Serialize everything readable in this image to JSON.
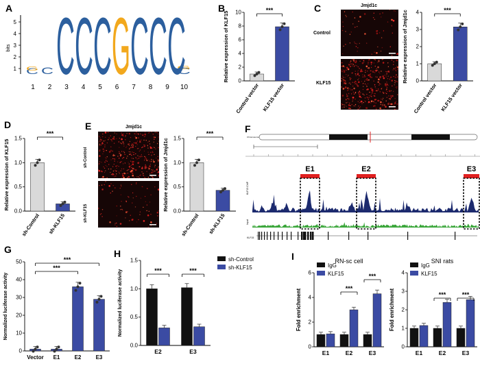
{
  "panel_labels": [
    "A",
    "B",
    "C",
    "D",
    "E",
    "F",
    "G",
    "H",
    "I"
  ],
  "colors": {
    "bar_dark": "#3b4ba3",
    "bar_gray": "#d9d9d9",
    "black": "#111111",
    "motif_blue": "#2c5f9e",
    "motif_yellow": "#f2a81d",
    "track_navy": "#1c2a6e",
    "track_green": "#3aa63a",
    "red": "#e02020"
  },
  "motif": {
    "yaxis_label": "bits",
    "ytick_labels": [
      "1",
      "2",
      "3",
      "4",
      "5"
    ],
    "positions": [
      "1",
      "2",
      "3",
      "4",
      "5",
      "6",
      "7",
      "8",
      "9",
      "10"
    ],
    "letters": [
      "C",
      "C",
      "C",
      "G",
      "C",
      "C",
      "C"
    ]
  },
  "micro_labels": {
    "C_title": "Jmjd1c",
    "C_rows": [
      "Control",
      "KLF15"
    ],
    "E_title": "Jmjd1c",
    "E_rows": [
      "sh-Control",
      "sh-KLF15"
    ]
  },
  "panelF": {
    "chrom_label": "Chromosome 10",
    "peaks": [
      "E1",
      "E2",
      "E3"
    ],
    "track_labels": [
      "KLF15 ChIP",
      "Input",
      "KLF15"
    ]
  },
  "chart_data": [
    {
      "id": "B",
      "type": "bar",
      "categories": [
        "Control vector",
        "KLF15 vector"
      ],
      "values": [
        1.0,
        7.9
      ],
      "ylabel": "Relative expression of KLF15",
      "ylim": [
        0,
        10
      ],
      "yticks": [
        0,
        2,
        4,
        6,
        8,
        10
      ],
      "significance": "***"
    },
    {
      "id": "C",
      "type": "bar",
      "categories": [
        "Control vector",
        "KLF15 vector"
      ],
      "values": [
        1.0,
        3.15
      ],
      "ylabel": "Relative expression of Jmjd1c",
      "ylim": [
        0,
        4
      ],
      "yticks": [
        0,
        1,
        2,
        3,
        4
      ],
      "significance": "***"
    },
    {
      "id": "D",
      "type": "bar",
      "categories": [
        "sh-Control",
        "sh-KLF15"
      ],
      "values": [
        1.0,
        0.15
      ],
      "ylabel": "Relative expression of KLF15",
      "ylim": [
        0,
        1.5
      ],
      "yticks": [
        0.0,
        0.5,
        1.0,
        1.5
      ],
      "significance": "***"
    },
    {
      "id": "E",
      "type": "bar",
      "categories": [
        "sh-Control",
        "sh-KLF15"
      ],
      "values": [
        1.0,
        0.43
      ],
      "ylabel": "Relative expression of Jmjd1c",
      "ylim": [
        0,
        1.5
      ],
      "yticks": [
        0.0,
        0.5,
        1.0,
        1.5
      ],
      "significance": "***"
    },
    {
      "id": "G",
      "type": "bar",
      "categories": [
        "Vector",
        "E1",
        "E2",
        "E3"
      ],
      "values": [
        1,
        1,
        36,
        29
      ],
      "ylabel": "Normalized luciferase activity",
      "ylim": [
        0,
        50
      ],
      "yticks": [
        0,
        10,
        20,
        30,
        40,
        50
      ],
      "significance": [
        "***",
        "***"
      ]
    },
    {
      "id": "H",
      "type": "bar",
      "categories": [
        "E2",
        "E3"
      ],
      "series": [
        {
          "name": "sh-Control",
          "values": [
            1.0,
            1.02
          ]
        },
        {
          "name": "sh-KLF15",
          "values": [
            0.31,
            0.33
          ]
        }
      ],
      "ylabel": "Normalized luciferase activity",
      "ylim": [
        0,
        1.5
      ],
      "yticks": [
        0.0,
        0.5,
        1.0,
        1.5
      ],
      "significance": "***",
      "legend": "top-right"
    },
    {
      "id": "I1",
      "type": "bar",
      "title": "RN-sc cell",
      "categories": [
        "E1",
        "E2",
        "E3"
      ],
      "series": [
        {
          "name": "IgG",
          "values": [
            1.0,
            1.0,
            1.0
          ]
        },
        {
          "name": "KLF15",
          "values": [
            1.05,
            3.0,
            4.3
          ]
        }
      ],
      "ylabel": "Fold enrichment",
      "ylim": [
        0,
        6
      ],
      "yticks": [
        0,
        2,
        4,
        6
      ],
      "significance": "***",
      "legend": "top-left"
    },
    {
      "id": "I2",
      "type": "bar",
      "title": "SNI rats",
      "categories": [
        "E1",
        "E2",
        "E3"
      ],
      "series": [
        {
          "name": "IgG",
          "values": [
            1.0,
            1.0,
            1.0
          ]
        },
        {
          "name": "KLF15",
          "values": [
            1.15,
            2.4,
            2.55
          ]
        }
      ],
      "ylabel": "Fold enrichment",
      "ylim": [
        0,
        4
      ],
      "yticks": [
        0,
        1,
        2,
        3,
        4
      ],
      "significance": "***",
      "legend": "top-left"
    }
  ]
}
